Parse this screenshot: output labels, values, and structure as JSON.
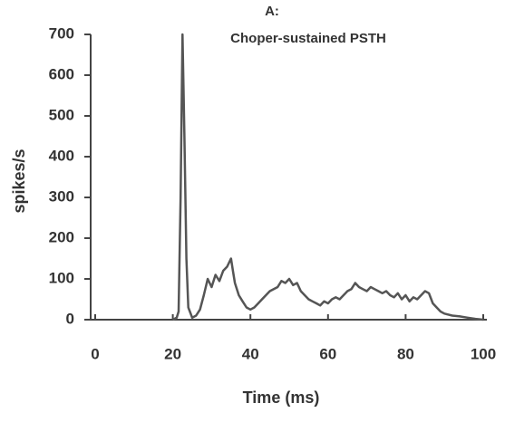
{
  "chart_data": {
    "type": "line",
    "title": "A:",
    "subtitle": "Choper-sustained PSTH",
    "xlabel": "Time (ms)",
    "ylabel": "spikes/s",
    "xlim": [
      0,
      100
    ],
    "ylim": [
      0,
      700
    ],
    "xticks": [
      0,
      20,
      40,
      60,
      80,
      100
    ],
    "yticks": [
      0,
      100,
      200,
      300,
      400,
      500,
      600,
      700
    ],
    "grid": false,
    "series": [
      {
        "color": "#555555",
        "x": [
          20,
          21,
          21.5,
          22,
          22.5,
          23,
          23.5,
          24,
          25,
          26,
          27,
          28,
          29,
          30,
          31,
          32,
          33,
          34,
          35,
          35.5,
          36,
          37,
          38,
          39,
          40,
          41,
          42,
          43,
          44,
          45,
          46,
          47,
          48,
          49,
          50,
          51,
          52,
          53,
          54,
          55,
          56,
          57,
          58,
          59,
          60,
          61,
          62,
          63,
          64,
          65,
          66,
          67,
          68,
          69,
          70,
          71,
          72,
          73,
          74,
          75,
          76,
          77,
          78,
          79,
          80,
          81,
          82,
          83,
          84,
          85,
          86,
          87,
          88,
          89,
          90,
          92,
          94,
          96,
          98,
          100
        ],
        "values": [
          0,
          5,
          20,
          300,
          700,
          450,
          150,
          30,
          5,
          10,
          25,
          60,
          100,
          80,
          110,
          95,
          120,
          130,
          150,
          120,
          90,
          60,
          45,
          30,
          25,
          30,
          40,
          50,
          60,
          70,
          75,
          80,
          95,
          90,
          100,
          85,
          90,
          70,
          60,
          50,
          45,
          40,
          35,
          45,
          40,
          50,
          55,
          50,
          60,
          70,
          75,
          90,
          80,
          75,
          70,
          80,
          75,
          70,
          65,
          70,
          60,
          55,
          65,
          50,
          60,
          45,
          55,
          50,
          60,
          70,
          65,
          40,
          30,
          20,
          15,
          10,
          8,
          5,
          2,
          0
        ]
      }
    ]
  }
}
